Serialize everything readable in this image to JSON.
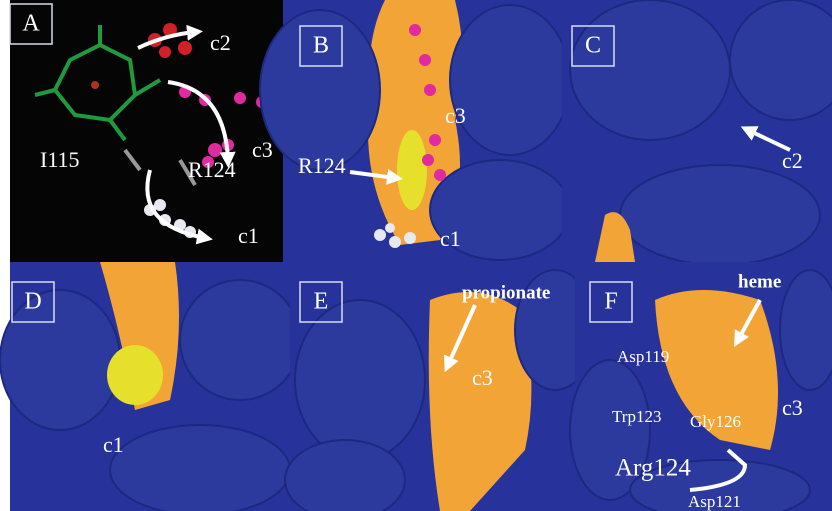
{
  "panels": [
    {
      "letter": "A",
      "labels": [
        "c2",
        "c3",
        "I115",
        "R124",
        "c1"
      ]
    },
    {
      "letter": "B",
      "labels": [
        "c3",
        "R124",
        "c1"
      ]
    },
    {
      "letter": "C",
      "labels": [
        "c2"
      ]
    },
    {
      "letter": "D",
      "labels": [
        "c1"
      ]
    },
    {
      "letter": "E",
      "labels": [
        "propionate",
        "c3"
      ]
    },
    {
      "letter": "F",
      "labels": [
        "heme",
        "Asp119",
        "c3",
        "Trp123",
        "Gly126",
        "Arg124",
        "Asp121"
      ]
    }
  ]
}
